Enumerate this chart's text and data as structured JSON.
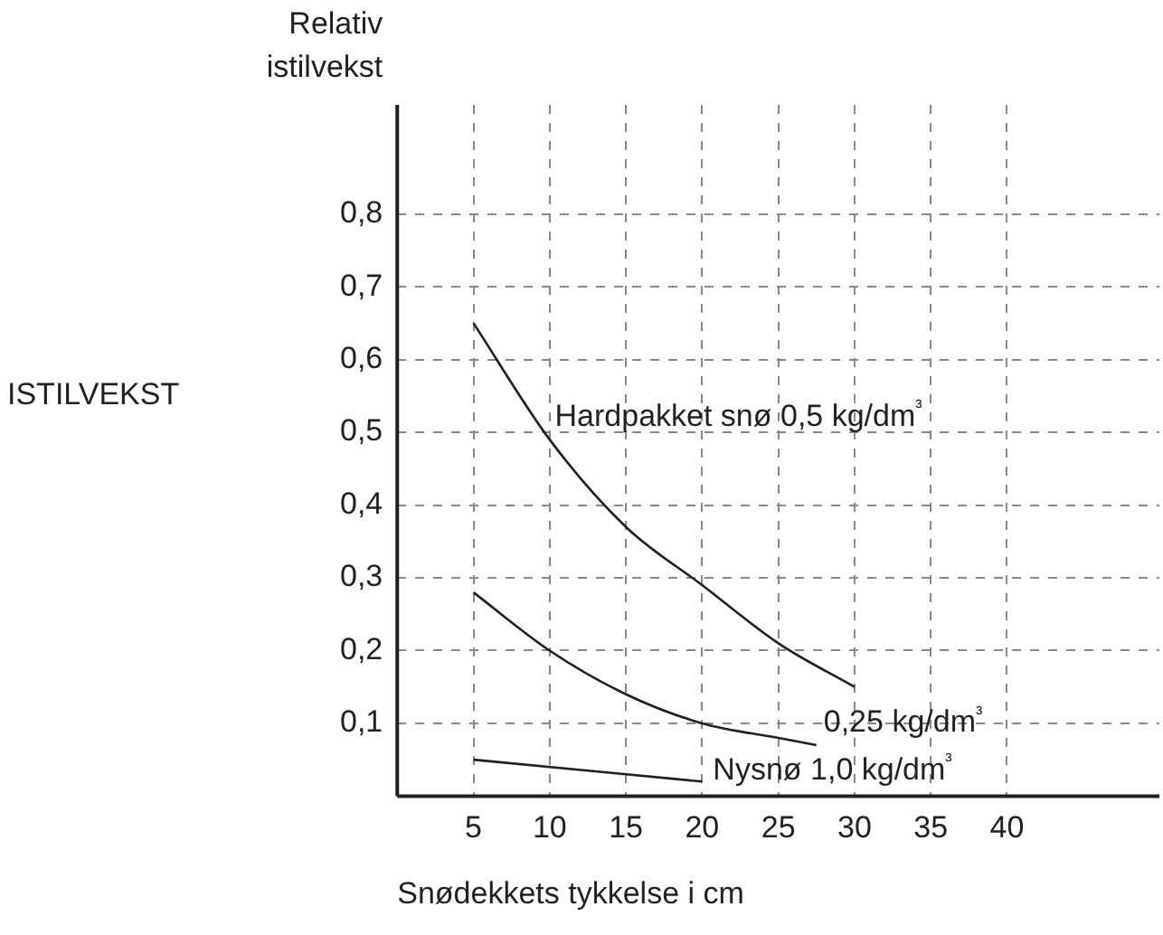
{
  "chart_data": {
    "type": "line",
    "title": "ISTILVEKST",
    "ylabel": "Relativ istilvekst",
    "xlabel": "Snødekkets tykkelse i cm",
    "series": [
      {
        "name": "Hardpakket snø 0,5 kg/dm³",
        "x": [
          5,
          10,
          15,
          20,
          25,
          30
        ],
        "values": [
          0.65,
          0.49,
          0.37,
          0.29,
          0.21,
          0.15
        ],
        "color": "#231f20"
      },
      {
        "name": "0,25 kg/dm³",
        "x": [
          5,
          10,
          15,
          20,
          25,
          27.5
        ],
        "values": [
          0.28,
          0.2,
          0.14,
          0.1,
          0.08,
          0.07
        ],
        "color": "#231f20"
      },
      {
        "name": "Nysnø 1,0 kg/dm³",
        "x": [
          5,
          20
        ],
        "values": [
          0.05,
          0.02
        ],
        "color": "#231f20"
      }
    ],
    "xlim": [
      0,
      50
    ],
    "ylim": [
      0,
      0.95
    ],
    "xticks": [
      5,
      10,
      15,
      20,
      25,
      30,
      35,
      40
    ],
    "yticks": [
      {
        "value": 0.1,
        "label": "0,1"
      },
      {
        "value": 0.2,
        "label": "0,2"
      },
      {
        "value": 0.3,
        "label": "0,3"
      },
      {
        "value": 0.4,
        "label": "0,4"
      },
      {
        "value": 0.5,
        "label": "0,5"
      },
      {
        "value": 0.6,
        "label": "0,6"
      },
      {
        "value": 0.7,
        "label": "0,7"
      },
      {
        "value": 0.8,
        "label": "0,8"
      }
    ],
    "grid": true,
    "legend": false,
    "marker": "none",
    "line_style": "solid"
  }
}
